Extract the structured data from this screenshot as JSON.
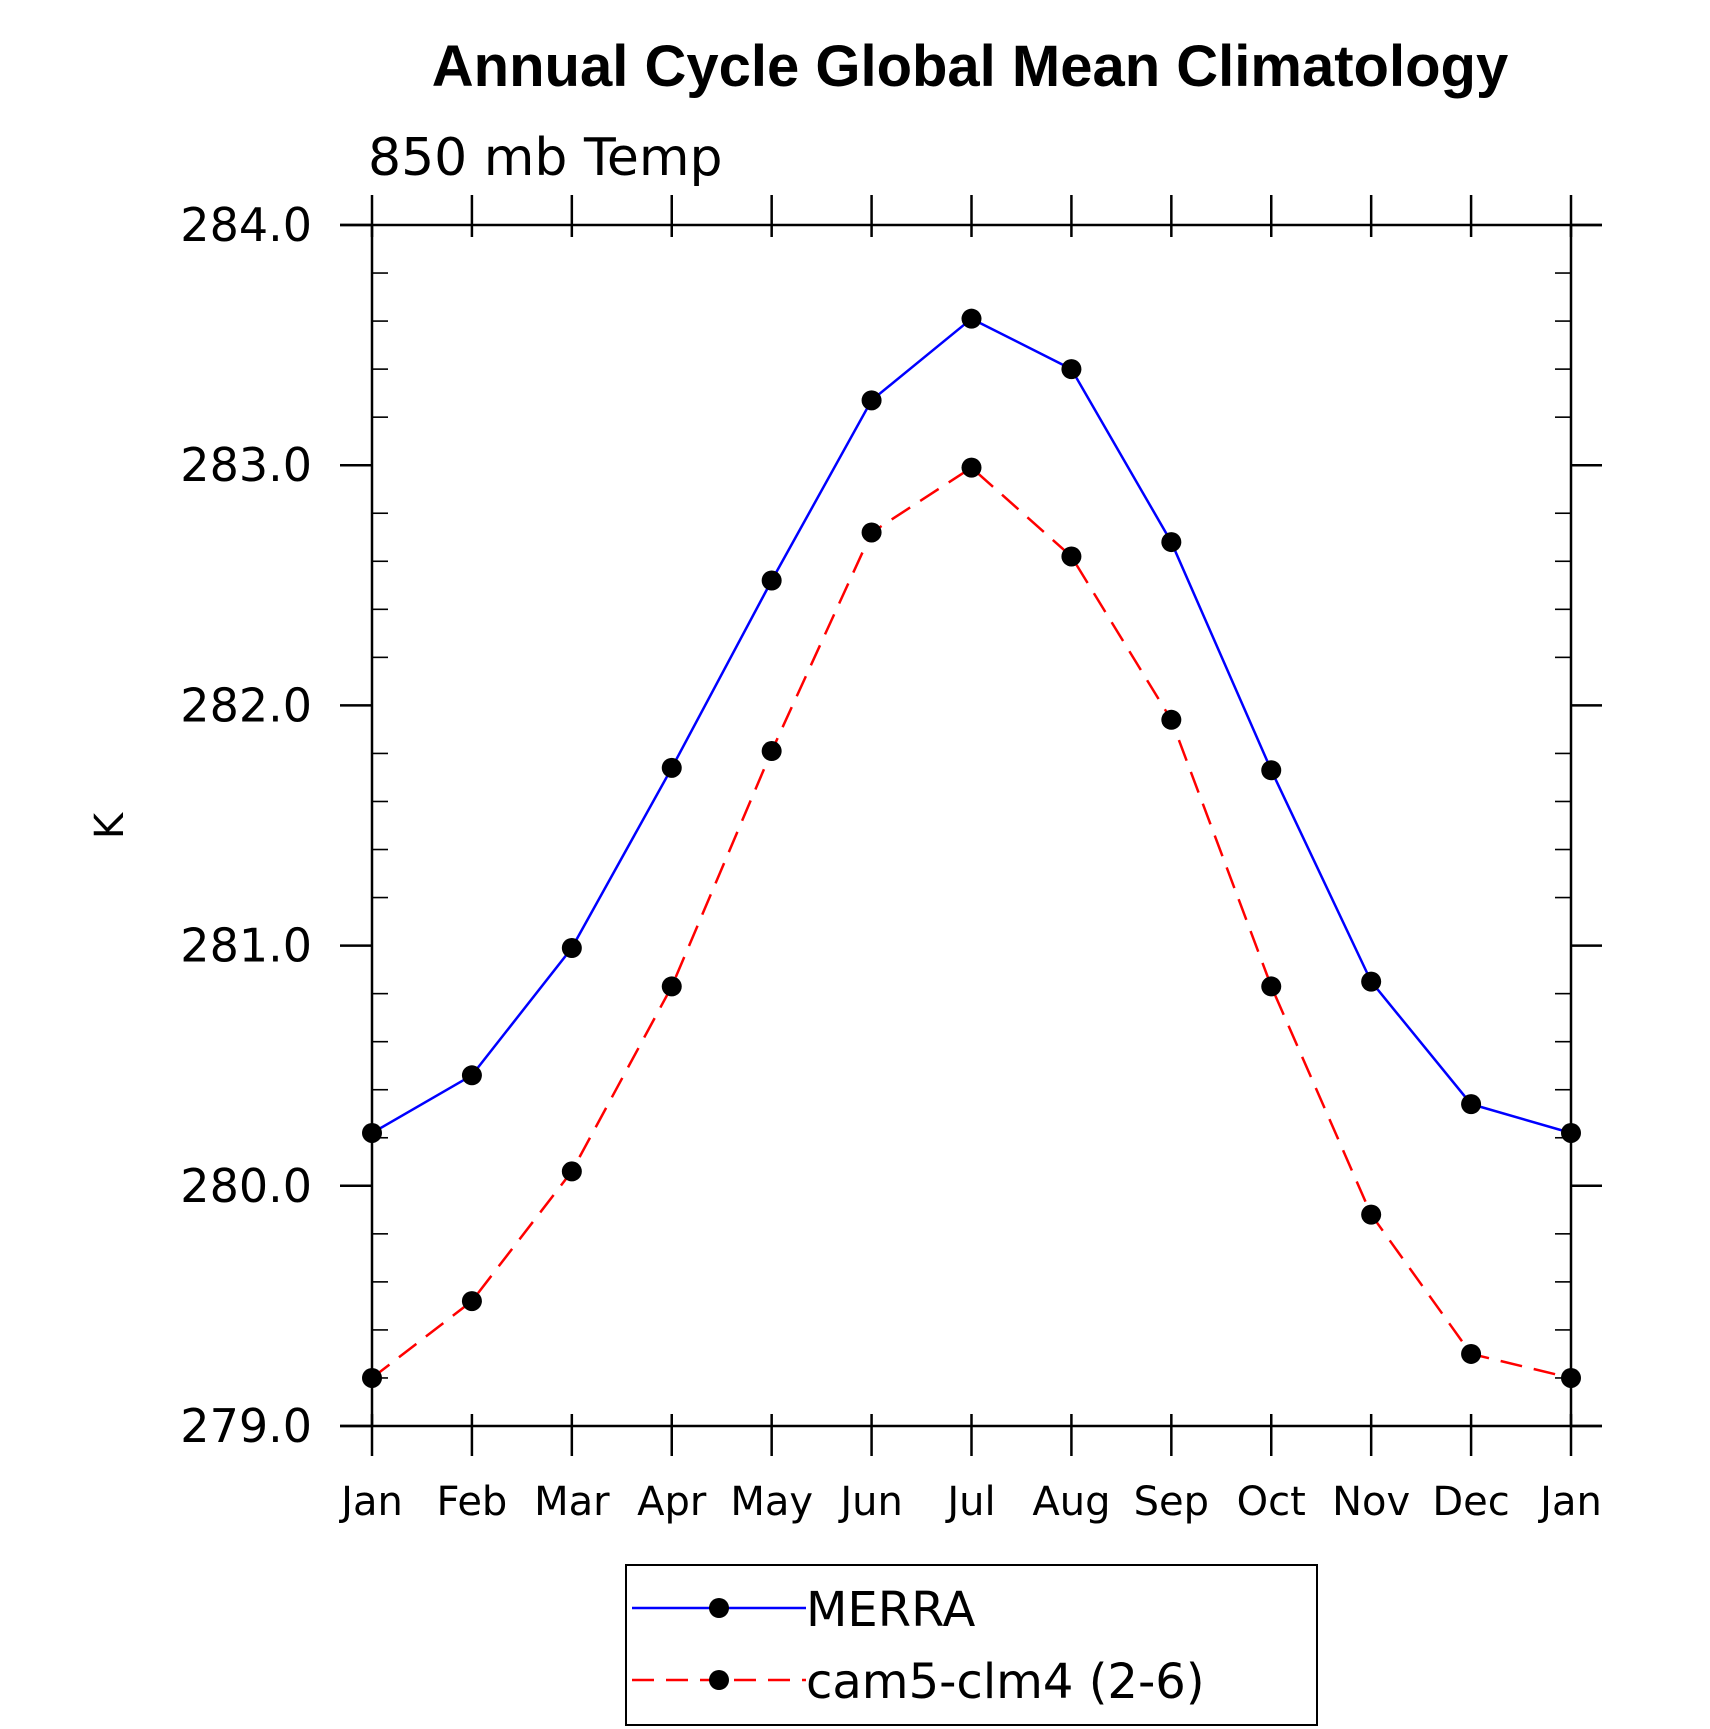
{
  "chart_data": {
    "type": "line",
    "title": "Annual Cycle Global Mean Climatology",
    "subtitle": "850 mb Temp",
    "xlabel": "",
    "ylabel": "K",
    "categories": [
      "Jan",
      "Feb",
      "Mar",
      "Apr",
      "May",
      "Jun",
      "Jul",
      "Aug",
      "Sep",
      "Oct",
      "Nov",
      "Dec",
      "Jan"
    ],
    "ylim": [
      279.0,
      284.0
    ],
    "yticks": [
      "279.0",
      "280.0",
      "281.0",
      "282.0",
      "283.0",
      "284.0"
    ],
    "grid": false,
    "legend_position": "bottom-center",
    "series": [
      {
        "name": "MERRA",
        "color": "#0000ff",
        "line_style": "solid",
        "marker": "filled-circle",
        "values": [
          280.22,
          280.46,
          280.99,
          281.74,
          282.52,
          283.27,
          283.61,
          283.4,
          282.68,
          281.73,
          280.85,
          280.34,
          280.22
        ]
      },
      {
        "name": "cam5-clm4 (2-6)",
        "color": "#ff0000",
        "line_style": "dashed",
        "marker": "filled-circle",
        "values": [
          279.2,
          279.52,
          280.06,
          280.83,
          281.81,
          282.72,
          282.99,
          282.62,
          281.94,
          280.83,
          279.88,
          279.3,
          279.2
        ]
      }
    ]
  }
}
